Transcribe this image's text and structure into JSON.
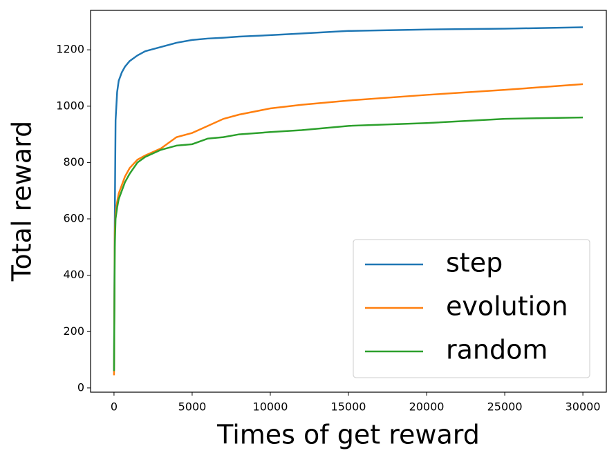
{
  "chart_data": {
    "type": "line",
    "x_label": "Times of get reward",
    "y_label": "Total reward",
    "x": [
      0,
      50,
      100,
      200,
      300,
      500,
      700,
      1000,
      1500,
      2000,
      3000,
      4000,
      5000,
      6000,
      7000,
      8000,
      10000,
      12000,
      15000,
      20000,
      25000,
      30000
    ],
    "series": [
      {
        "name": "step",
        "color": "#1f77b4",
        "values": [
          60,
          600,
          950,
          1050,
          1090,
          1120,
          1140,
          1160,
          1180,
          1195,
          1210,
          1225,
          1235,
          1240,
          1243,
          1247,
          1252,
          1258,
          1267,
          1272,
          1275,
          1280
        ]
      },
      {
        "name": "evolution",
        "color": "#ff7f0e",
        "values": [
          45,
          550,
          620,
          660,
          690,
          720,
          750,
          780,
          810,
          825,
          850,
          890,
          905,
          930,
          955,
          970,
          992,
          1005,
          1020,
          1040,
          1058,
          1078
        ]
      },
      {
        "name": "random",
        "color": "#2ca02c",
        "values": [
          60,
          500,
          600,
          640,
          670,
          700,
          730,
          760,
          800,
          820,
          845,
          860,
          865,
          885,
          890,
          900,
          908,
          915,
          930,
          940,
          955,
          960
        ]
      }
    ],
    "xlim": [
      -1500,
      31500
    ],
    "ylim": [
      -15,
      1340
    ],
    "xticks": [
      0,
      5000,
      10000,
      15000,
      20000,
      25000,
      30000
    ],
    "yticks": [
      0,
      200,
      400,
      600,
      800,
      1000,
      1200
    ],
    "legend": "lower right"
  }
}
